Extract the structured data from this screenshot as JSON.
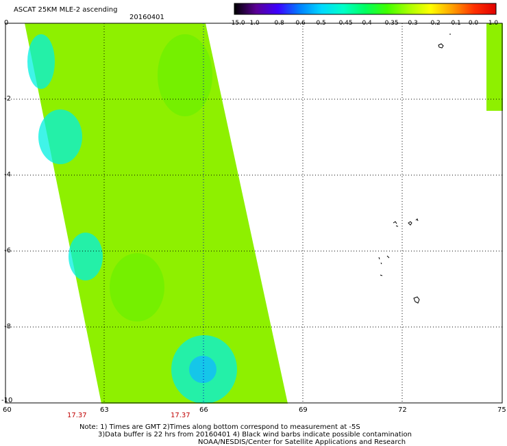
{
  "title": "ASCAT 25KM MLE-2 ascending",
  "date": "20160401",
  "colorbar": {
    "labels": [
      "-15.0",
      "-1.0",
      "-0.8",
      "-0.6",
      "-0.5",
      "-0.45",
      "-0.4",
      "-0.35",
      "-0.3",
      "-0.2",
      "-0.1",
      "0.0",
      "1.0"
    ],
    "colors": [
      "#000000",
      "#5a0095",
      "#3c00ff",
      "#0080ff",
      "#00d8ff",
      "#00ffc8",
      "#00ff60",
      "#40ff00",
      "#a8ff00",
      "#ffff00",
      "#ffa000",
      "#ff3000",
      "#e00000"
    ]
  },
  "axes": {
    "x_ticks": [
      "60",
      "63",
      "66",
      "69",
      "72",
      "75"
    ],
    "y_ticks": [
      "0",
      "-2",
      "-4",
      "-6",
      "-8",
      "-10"
    ],
    "x_range": [
      60,
      75
    ],
    "y_range": [
      -10,
      0
    ]
  },
  "times": [
    "17.37",
    "17.37"
  ],
  "notes": [
    "Note: 1) Times are GMT 2)Times along bottom correspond to measurement at -5S",
    "3)Data buffer is 22 hrs from 20160401 4) Black wind barbs indicate possible contamination",
    "NOAA/NESDIS/Center for Satellite Applications and Research"
  ],
  "swath_colors": {
    "base": "#8ef000",
    "mid": "#6cf000",
    "green": "#30f030",
    "cyan": "#00f0e0",
    "blue": "#10b8ff"
  }
}
